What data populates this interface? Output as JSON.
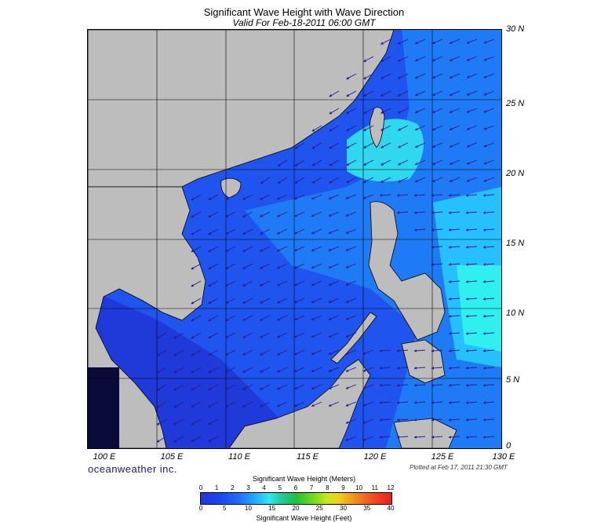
{
  "title": "Significant Wave Height with Wave Direction",
  "subtitle": "Valid For Feb-18-2011 06:00 GMT",
  "brand": "oceanweather inc.",
  "plotted": "Plotted at Feb 17, 2011 21:30 GMT",
  "lat_labels": [
    "30 N",
    "25 N",
    "20 N",
    "15 N",
    "10 N",
    "5 N",
    "0"
  ],
  "lon_labels": [
    "100 E",
    "105 E",
    "110 E",
    "115 E",
    "120 E",
    "125 E",
    "130 E"
  ],
  "colorbar": {
    "title_top": "Significant Wave Height (Meters)",
    "title_bottom": "Significant Wave Height (Feet)",
    "meters": [
      "0",
      "1",
      "2",
      "3",
      "4",
      "5",
      "6",
      "7",
      "8",
      "9",
      "10",
      "11",
      "12"
    ],
    "feet": [
      "0",
      "5",
      "10",
      "15",
      "20",
      "25",
      "30",
      "35",
      "40"
    ]
  },
  "colors": {
    "land": "#bdbdbd",
    "sea_low": "#1f3ad8",
    "sea_mid": "#1f6ff5",
    "sea_high": "#26c8ff",
    "arrow": "#2a1a8a"
  }
}
